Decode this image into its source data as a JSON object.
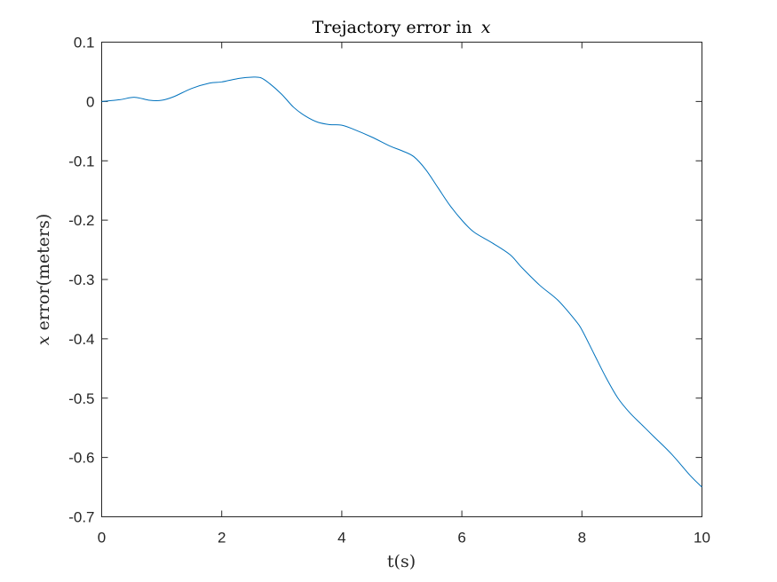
{
  "chart_data": {
    "type": "line",
    "title": "Trejactory error in",
    "title_var": "x",
    "xlabel": "t(s)",
    "ylabel_var": "x",
    "ylabel": " error(meters)",
    "xlim": [
      0,
      10
    ],
    "ylim": [
      -0.7,
      0.1
    ],
    "xticks": [
      0,
      2,
      4,
      6,
      8,
      10
    ],
    "xtick_labels": [
      "0",
      "2",
      "4",
      "6",
      "8",
      "10"
    ],
    "yticks": [
      0.1,
      0,
      -0.1,
      -0.2,
      -0.3,
      -0.4,
      -0.5,
      -0.6,
      -0.7
    ],
    "ytick_labels": [
      "0.1",
      "0",
      "-0.1",
      "-0.2",
      "-0.3",
      "-0.4",
      "-0.5",
      "-0.6",
      "-0.7"
    ],
    "grid": false,
    "series": [
      {
        "color": "#0072BD",
        "x": [
          0,
          0.3,
          0.55,
          0.8,
          1.0,
          1.2,
          1.5,
          1.8,
          2.0,
          2.3,
          2.5,
          2.65,
          2.8,
          3.0,
          3.2,
          3.4,
          3.6,
          3.8,
          4.0,
          4.2,
          4.5,
          4.8,
          5.0,
          5.2,
          5.4,
          5.6,
          5.8,
          6.0,
          6.2,
          6.5,
          6.8,
          7.0,
          7.3,
          7.6,
          7.9,
          8.0,
          8.2,
          8.4,
          8.6,
          8.8,
          9.0,
          9.2,
          9.5,
          9.8,
          10.0
        ],
        "y": [
          0.0,
          0.003,
          0.007,
          0.002,
          0.002,
          0.008,
          0.022,
          0.031,
          0.033,
          0.039,
          0.041,
          0.04,
          0.03,
          0.012,
          -0.01,
          -0.025,
          -0.035,
          -0.039,
          -0.04,
          -0.047,
          -0.06,
          -0.075,
          -0.083,
          -0.093,
          -0.115,
          -0.145,
          -0.175,
          -0.2,
          -0.22,
          -0.238,
          -0.258,
          -0.28,
          -0.31,
          -0.335,
          -0.37,
          -0.385,
          -0.425,
          -0.465,
          -0.5,
          -0.525,
          -0.545,
          -0.565,
          -0.595,
          -0.63,
          -0.65
        ]
      }
    ]
  }
}
